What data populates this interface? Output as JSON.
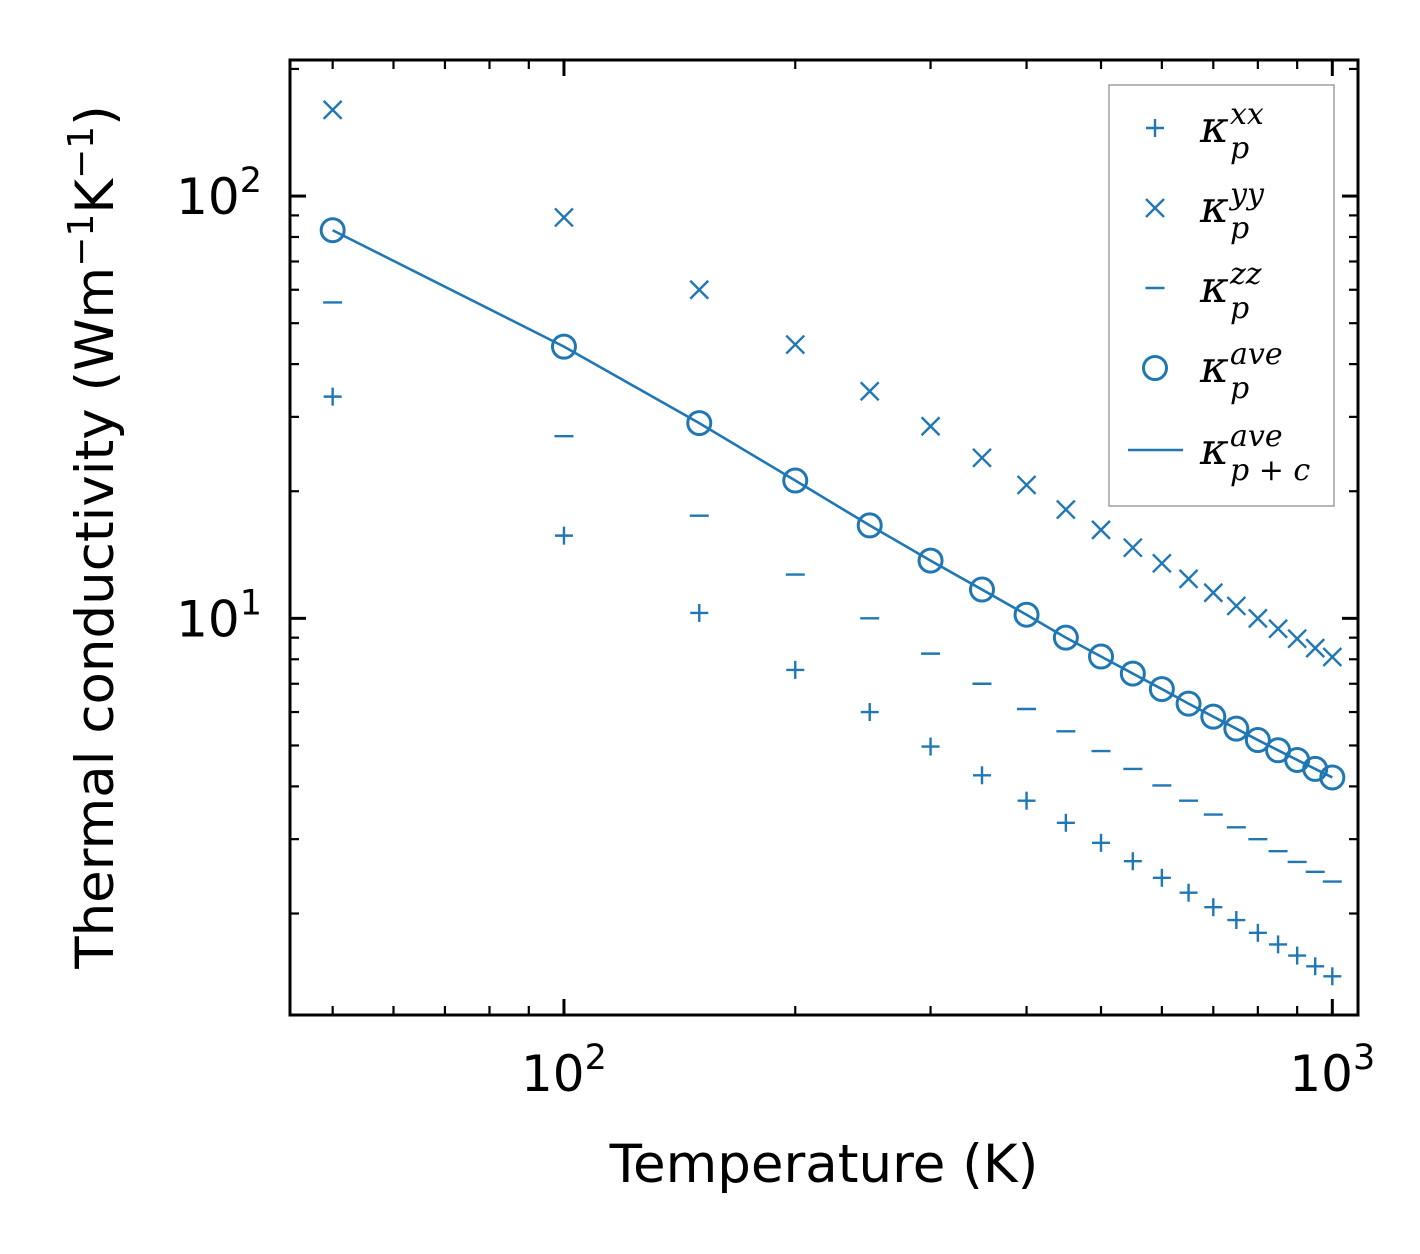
{
  "chart_data": {
    "type": "scatter",
    "scale": "log-log",
    "xlabel": "Temperature (K)",
    "ylabel_parts": [
      "Thermal conductivity (Wm",
      "−1",
      "K",
      "−1",
      ")"
    ],
    "xlim": [
      44,
      1080
    ],
    "ylim": [
      1.15,
      210
    ],
    "x_major_ticks": [
      {
        "value": 100,
        "base": "10",
        "exp": "2"
      },
      {
        "value": 1000,
        "base": "10",
        "exp": "3"
      }
    ],
    "y_major_ticks": [
      {
        "value": 10,
        "base": "10",
        "exp": "1"
      },
      {
        "value": 100,
        "base": "10",
        "exp": "2"
      }
    ],
    "color": "#1f77b4",
    "legend_position": "top-right",
    "x": [
      50,
      100,
      150,
      200,
      250,
      300,
      350,
      400,
      450,
      500,
      550,
      600,
      650,
      700,
      750,
      800,
      850,
      900,
      950,
      1000
    ],
    "series": [
      {
        "name": "kxx",
        "marker": "plus",
        "label_base": "κ",
        "label_sup": "xx",
        "label_sub": "p",
        "values": [
          33.5,
          15.7,
          10.3,
          7.55,
          6.0,
          4.97,
          4.25,
          3.7,
          3.28,
          2.94,
          2.66,
          2.43,
          2.24,
          2.07,
          1.93,
          1.8,
          1.69,
          1.59,
          1.5,
          1.42
        ]
      },
      {
        "name": "kyy",
        "marker": "x",
        "label_base": "κ",
        "label_sup": "yy",
        "label_sub": "p",
        "values": [
          160,
          89,
          60,
          44.5,
          34.5,
          28.5,
          24.0,
          20.7,
          18.1,
          16.2,
          14.7,
          13.5,
          12.4,
          11.5,
          10.7,
          10.0,
          9.45,
          8.95,
          8.5,
          8.1
        ]
      },
      {
        "name": "kzz",
        "marker": "dash",
        "label_base": "κ",
        "label_sup": "zz",
        "label_sub": "p",
        "values": [
          56,
          27,
          17.5,
          12.7,
          10.0,
          8.25,
          7.0,
          6.1,
          5.4,
          4.85,
          4.4,
          4.02,
          3.7,
          3.43,
          3.2,
          3.0,
          2.81,
          2.65,
          2.51,
          2.38
        ]
      },
      {
        "name": "kave",
        "marker": "circle",
        "label_base": "κ",
        "label_sup": "ave",
        "label_sub": "p",
        "values": [
          83,
          44,
          29,
          21.2,
          16.6,
          13.7,
          11.7,
          10.2,
          9.0,
          8.12,
          7.4,
          6.8,
          6.28,
          5.85,
          5.48,
          5.15,
          4.87,
          4.62,
          4.4,
          4.2
        ]
      },
      {
        "name": "kave_pc",
        "marker": "line",
        "label_base": "κ",
        "label_sup": "ave",
        "label_sub": "p + c",
        "values": [
          83,
          44,
          29,
          21.2,
          16.6,
          13.7,
          11.7,
          10.2,
          9.0,
          8.12,
          7.4,
          6.8,
          6.28,
          5.85,
          5.48,
          5.15,
          4.87,
          4.62,
          4.4,
          4.2
        ]
      }
    ]
  }
}
